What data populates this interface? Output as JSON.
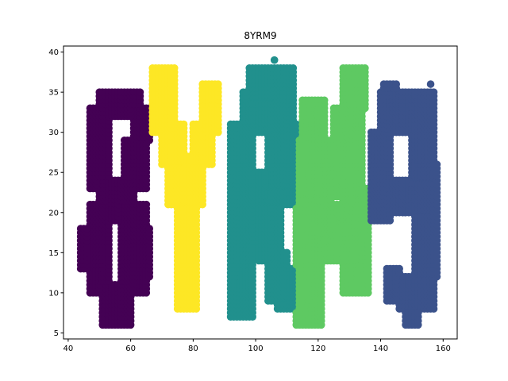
{
  "chart_data": {
    "type": "scatter",
    "title": "8YRM9",
    "xlabel": "",
    "ylabel": "",
    "xlim": [
      38.5,
      164.5
    ],
    "ylim": [
      4.25,
      40.75
    ],
    "xticks": [
      40,
      60,
      80,
      100,
      120,
      140,
      160
    ],
    "yticks": [
      5,
      10,
      15,
      20,
      25,
      30,
      35,
      40
    ],
    "grid": false,
    "legend": "none",
    "marker_radius_note": "uniform",
    "series": [
      {
        "color": "#440154",
        "regions": [
          {
            "x": [
              51,
              60
            ],
            "y": [
              6,
              11
            ]
          },
          {
            "x": [
              47,
              53
            ],
            "y": [
              10,
              21
            ]
          },
          {
            "x": [
              57,
              65
            ],
            "y": [
              10,
              21
            ]
          },
          {
            "x": [
              44,
              49
            ],
            "y": [
              13,
              18
            ]
          },
          {
            "x": [
              62,
              66
            ],
            "y": [
              12,
              18
            ]
          },
          {
            "x": [
              50,
              61
            ],
            "y": [
              19,
              24
            ]
          },
          {
            "x": [
              47,
              53
            ],
            "y": [
              23,
              33
            ]
          },
          {
            "x": [
              58,
              65
            ],
            "y": [
              23,
              29
            ]
          },
          {
            "x": [
              61,
              66
            ],
            "y": [
              29,
              33
            ]
          },
          {
            "x": [
              50,
              63
            ],
            "y": [
              32,
              35
            ]
          }
        ]
      },
      {
        "color": "#fde725",
        "regions": [
          {
            "x": [
              67,
              74
            ],
            "y": [
              30,
              38
            ]
          },
          {
            "x": [
              70,
              77
            ],
            "y": [
              26,
              31
            ]
          },
          {
            "x": [
              83,
              88
            ],
            "y": [
              30,
              36
            ]
          },
          {
            "x": [
              80,
              86
            ],
            "y": [
              26,
              31
            ]
          },
          {
            "x": [
              72,
              83
            ],
            "y": [
              21,
              27
            ]
          },
          {
            "x": [
              75,
              81
            ],
            "y": [
              8,
              21
            ]
          }
        ]
      },
      {
        "color": "#21908d",
        "regions": [
          {
            "x": [
              92,
              99
            ],
            "y": [
              7,
              31
            ]
          },
          {
            "x": [
              98,
              106
            ],
            "y": [
              34,
              38
            ]
          },
          {
            "x": [
              96,
              101
            ],
            "y": [
              30,
              35
            ]
          },
          {
            "x": [
              101,
              112
            ],
            "y": [
              30,
              38
            ]
          },
          {
            "x": [
              104,
              113
            ],
            "y": [
              23,
              31
            ]
          },
          {
            "x": [
              97,
              113
            ],
            "y": [
              21,
              25
            ]
          },
          {
            "x": [
              101,
              108
            ],
            "y": [
              14,
              21
            ]
          },
          {
            "x": [
              104,
              110
            ],
            "y": [
              9,
              15
            ]
          },
          {
            "x": [
              107,
              113
            ],
            "y": [
              8,
              13
            ]
          }
        ]
      },
      {
        "color": "#5ec962",
        "regions": [
          {
            "x": [
              113,
              134
            ],
            "y": [
              22,
              29
            ]
          },
          {
            "x": [
              113,
              121
            ],
            "y": [
              6,
              22
            ]
          },
          {
            "x": [
              115,
              122
            ],
            "y": [
              28,
              34
            ]
          },
          {
            "x": [
              118,
              124
            ],
            "y": [
              17,
              24
            ]
          },
          {
            "x": [
              122,
              127
            ],
            "y": [
              14,
              21
            ]
          },
          {
            "x": [
              125,
              134
            ],
            "y": [
              26,
              33
            ]
          },
          {
            "x": [
              128,
              135
            ],
            "y": [
              33,
              38
            ]
          },
          {
            "x": [
              128,
              136
            ],
            "y": [
              10,
              23
            ]
          }
        ]
      },
      {
        "color": "#3b528b",
        "regions": [
          {
            "x": [
              137,
              143
            ],
            "y": [
              19,
              30
            ]
          },
          {
            "x": [
              140,
              157
            ],
            "y": [
              30,
              35
            ]
          },
          {
            "x": [
              141,
              145
            ],
            "y": [
              35,
              36
            ]
          },
          {
            "x": [
              150,
              157
            ],
            "y": [
              24,
              30
            ]
          },
          {
            "x": [
              144,
              156
            ],
            "y": [
              20,
              24
            ]
          },
          {
            "x": [
              151,
              158
            ],
            "y": [
              12,
              26
            ]
          },
          {
            "x": [
              146,
              157
            ],
            "y": [
              8,
              12
            ]
          },
          {
            "x": [
              142,
              146
            ],
            "y": [
              9,
              13
            ]
          },
          {
            "x": [
              148,
              152
            ],
            "y": [
              6,
              8
            ]
          }
        ]
      }
    ],
    "extra_points": [
      {
        "x": 106,
        "y": 39,
        "color": "#21908d"
      },
      {
        "x": 156,
        "y": 36,
        "color": "#3b528b"
      }
    ]
  }
}
